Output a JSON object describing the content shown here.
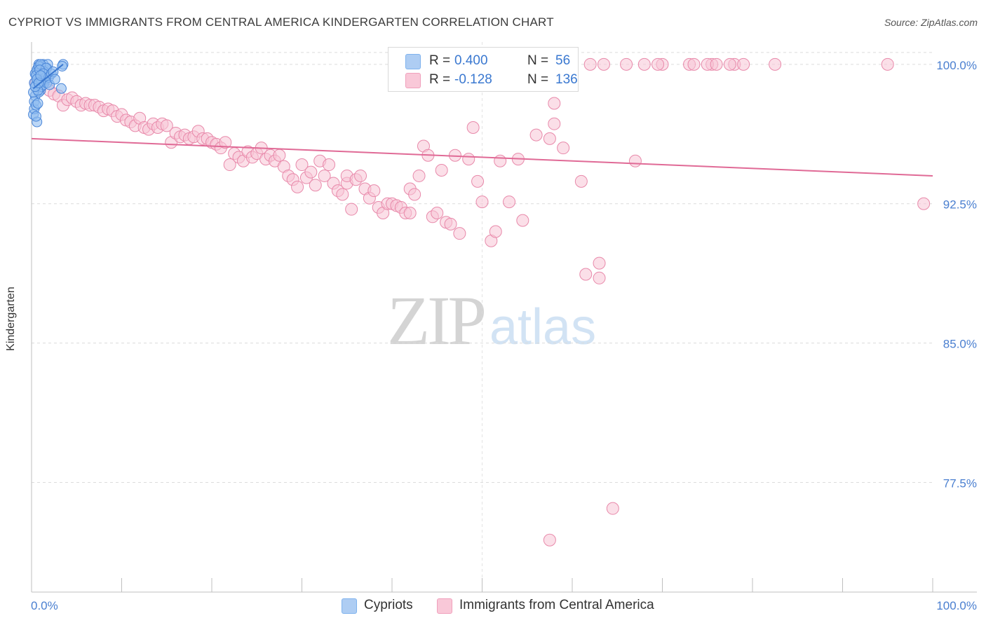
{
  "title": "CYPRIOT VS IMMIGRANTS FROM CENTRAL AMERICA KINDERGARTEN CORRELATION CHART",
  "source": "Source: ZipAtlas.com",
  "watermark": {
    "zip": "ZIP",
    "atlas": "atlas"
  },
  "stats": {
    "r_label": "R =",
    "n_label": "N =",
    "rows": [
      {
        "r": "0.400",
        "n": "56",
        "color": "#7fb3ee"
      },
      {
        "r": "-0.128",
        "n": "136",
        "color": "#f7b2c8"
      }
    ]
  },
  "legend": {
    "items": [
      {
        "label": "Cypriots",
        "color": "#aecdf3"
      },
      {
        "label": "Immigrants from Central America",
        "color": "#f9c8d8"
      }
    ]
  },
  "colors": {
    "blue_fill": "#8fbcf0",
    "blue_stroke": "#4a86d8",
    "blue_line": "#3a78d0",
    "pink_fill": "#f8c4d5",
    "pink_stroke": "#e889aa",
    "pink_line": "#e06a96",
    "tick_label": "#4a7fd0",
    "grid": "#dcdcdc",
    "axis": "#bfbfbf"
  },
  "chart_data": {
    "type": "scatter",
    "title": "CYPRIOT VS IMMIGRANTS FROM CENTRAL AMERICA KINDERGARTEN CORRELATION CHART",
    "xlabel": "",
    "ylabel": "Kindergarten",
    "xlim": [
      0,
      100
    ],
    "ylim": [
      71.6,
      101.2
    ],
    "x_tick_labels": [
      "0.0%",
      "100.0%"
    ],
    "y_ticks": [
      100.0,
      92.5,
      85.0,
      77.5
    ],
    "y_tick_labels": [
      "100.0%",
      "92.5%",
      "85.0%",
      "77.5%"
    ],
    "grid": true,
    "series": [
      {
        "name": "Cypriots",
        "r": 0.4,
        "n": 56,
        "trend": {
          "x": [
            0.2,
            3.5
          ],
          "y": [
            98.7,
            100.0
          ]
        },
        "points": [
          [
            0.2,
            97.3
          ],
          [
            0.3,
            97.6
          ],
          [
            0.4,
            98.3
          ],
          [
            0.5,
            98.9
          ],
          [
            0.6,
            99.4
          ],
          [
            0.7,
            99.8
          ],
          [
            0.8,
            100.0
          ],
          [
            0.9,
            99.2
          ],
          [
            1.0,
            98.6
          ],
          [
            1.1,
            99.9
          ],
          [
            1.2,
            99.5
          ],
          [
            1.3,
            100.0
          ],
          [
            1.4,
            99.0
          ],
          [
            1.5,
            99.7
          ],
          [
            1.6,
            99.3
          ],
          [
            1.7,
            99.8
          ],
          [
            1.8,
            100.0
          ],
          [
            0.3,
            98.0
          ],
          [
            0.5,
            97.8
          ],
          [
            0.6,
            96.9
          ],
          [
            0.7,
            97.9
          ],
          [
            0.8,
            98.5
          ],
          [
            0.9,
            99.1
          ],
          [
            1.0,
            99.6
          ],
          [
            1.1,
            98.8
          ],
          [
            1.2,
            99.4
          ],
          [
            1.3,
            98.9
          ],
          [
            1.5,
            99.2
          ],
          [
            0.4,
            99.5
          ],
          [
            0.6,
            99.7
          ],
          [
            0.8,
            99.9
          ],
          [
            1.0,
            100.0
          ],
          [
            1.2,
            99.3
          ],
          [
            1.4,
            99.6
          ],
          [
            1.6,
            99.8
          ],
          [
            0.2,
            98.5
          ],
          [
            0.3,
            99.0
          ],
          [
            0.5,
            99.4
          ],
          [
            0.7,
            98.6
          ],
          [
            0.9,
            99.7
          ],
          [
            1.1,
            99.1
          ],
          [
            1.3,
            99.5
          ],
          [
            1.7,
            99.0
          ],
          [
            1.9,
            99.3
          ],
          [
            2.0,
            98.9
          ],
          [
            2.2,
            99.5
          ],
          [
            3.5,
            100.0
          ],
          [
            3.4,
            99.9
          ],
          [
            3.3,
            98.7
          ],
          [
            2.4,
            99.6
          ],
          [
            2.6,
            99.2
          ],
          [
            0.4,
            98.8
          ],
          [
            0.6,
            99.2
          ],
          [
            0.8,
            99.0
          ],
          [
            1.0,
            99.4
          ],
          [
            0.5,
            97.2
          ]
        ]
      },
      {
        "name": "Immigrants from Central America",
        "r": -0.128,
        "n": 136,
        "trend": {
          "x": [
            0,
            100
          ],
          "y": [
            96.0,
            94.0
          ]
        },
        "points": [
          [
            0.5,
            99.0
          ],
          [
            1.0,
            98.8
          ],
          [
            1.5,
            99.2
          ],
          [
            2.0,
            98.6
          ],
          [
            2.5,
            98.4
          ],
          [
            3.0,
            98.3
          ],
          [
            3.5,
            97.8
          ],
          [
            4.0,
            98.1
          ],
          [
            4.5,
            98.2
          ],
          [
            5.0,
            98.0
          ],
          [
            5.5,
            97.8
          ],
          [
            6.0,
            97.9
          ],
          [
            6.5,
            97.8
          ],
          [
            7.0,
            97.8
          ],
          [
            7.5,
            97.7
          ],
          [
            8.0,
            97.5
          ],
          [
            8.5,
            97.6
          ],
          [
            9.0,
            97.5
          ],
          [
            9.5,
            97.2
          ],
          [
            10.0,
            97.3
          ],
          [
            10.5,
            97.0
          ],
          [
            11.0,
            96.9
          ],
          [
            11.5,
            96.7
          ],
          [
            12.0,
            97.1
          ],
          [
            12.5,
            96.6
          ],
          [
            13.0,
            96.5
          ],
          [
            13.5,
            96.8
          ],
          [
            14.0,
            96.6
          ],
          [
            14.5,
            96.8
          ],
          [
            15.0,
            96.7
          ],
          [
            15.5,
            95.8
          ],
          [
            16.0,
            96.3
          ],
          [
            16.5,
            96.1
          ],
          [
            17.0,
            96.2
          ],
          [
            17.5,
            96.0
          ],
          [
            18.0,
            96.1
          ],
          [
            18.5,
            96.4
          ],
          [
            19.0,
            96.0
          ],
          [
            19.5,
            96.0
          ],
          [
            20.0,
            95.8
          ],
          [
            20.5,
            95.7
          ],
          [
            21.0,
            95.5
          ],
          [
            21.5,
            95.8
          ],
          [
            22.0,
            94.6
          ],
          [
            22.5,
            95.2
          ],
          [
            23.0,
            95.0
          ],
          [
            23.5,
            94.8
          ],
          [
            24.0,
            95.3
          ],
          [
            24.5,
            95.0
          ],
          [
            25.0,
            95.2
          ],
          [
            25.5,
            95.5
          ],
          [
            26.0,
            94.9
          ],
          [
            26.5,
            95.1
          ],
          [
            27.0,
            94.8
          ],
          [
            27.5,
            95.1
          ],
          [
            28.0,
            94.5
          ],
          [
            28.5,
            94.0
          ],
          [
            29.0,
            93.8
          ],
          [
            29.5,
            93.4
          ],
          [
            30.0,
            94.6
          ],
          [
            30.5,
            93.9
          ],
          [
            31.0,
            94.2
          ],
          [
            31.5,
            93.5
          ],
          [
            32.0,
            94.8
          ],
          [
            32.5,
            94.0
          ],
          [
            33.0,
            94.6
          ],
          [
            33.5,
            93.6
          ],
          [
            34.0,
            93.2
          ],
          [
            34.5,
            93.0
          ],
          [
            35.0,
            93.6
          ],
          [
            35.5,
            92.2
          ],
          [
            35.0,
            94.0
          ],
          [
            36.0,
            93.8
          ],
          [
            36.5,
            94.0
          ],
          [
            37.0,
            93.3
          ],
          [
            37.5,
            92.8
          ],
          [
            38.0,
            93.2
          ],
          [
            38.5,
            92.3
          ],
          [
            39.0,
            92.0
          ],
          [
            39.5,
            92.5
          ],
          [
            40.0,
            92.5
          ],
          [
            40.5,
            92.4
          ],
          [
            41.0,
            92.3
          ],
          [
            41.5,
            92.0
          ],
          [
            42.0,
            93.3
          ],
          [
            42.5,
            93.0
          ],
          [
            43.0,
            94.0
          ],
          [
            42.0,
            92.0
          ],
          [
            43.5,
            95.6
          ],
          [
            44.0,
            95.1
          ],
          [
            44.5,
            91.8
          ],
          [
            45.0,
            92.0
          ],
          [
            45.5,
            94.3
          ],
          [
            46.0,
            91.5
          ],
          [
            46.5,
            91.4
          ],
          [
            47.0,
            95.1
          ],
          [
            47.5,
            90.9
          ],
          [
            48.5,
            94.9
          ],
          [
            49.0,
            96.6
          ],
          [
            49.5,
            93.7
          ],
          [
            50.0,
            92.6
          ],
          [
            51.0,
            90.5
          ],
          [
            51.5,
            91.0
          ],
          [
            52.0,
            94.8
          ],
          [
            53.0,
            92.6
          ],
          [
            54.0,
            94.9
          ],
          [
            54.5,
            91.6
          ],
          [
            56.0,
            96.2
          ],
          [
            58.0,
            97.9
          ],
          [
            57.5,
            96.0
          ],
          [
            58.0,
            96.8
          ],
          [
            59.0,
            95.5
          ],
          [
            61.0,
            93.7
          ],
          [
            61.5,
            88.7
          ],
          [
            63.0,
            89.3
          ],
          [
            63.0,
            88.5
          ],
          [
            64.5,
            76.1
          ],
          [
            67.0,
            94.8
          ],
          [
            57.5,
            74.4
          ],
          [
            62.0,
            100.0
          ],
          [
            63.5,
            100.0
          ],
          [
            66.0,
            100.0
          ],
          [
            68.0,
            100.0
          ],
          [
            70.0,
            100.0
          ],
          [
            73.0,
            100.0
          ],
          [
            75.5,
            100.0
          ],
          [
            75.0,
            100.0
          ],
          [
            73.5,
            100.0
          ],
          [
            78.0,
            100.0
          ],
          [
            79.0,
            100.0
          ],
          [
            82.5,
            100.0
          ],
          [
            95.0,
            100.0
          ],
          [
            77.5,
            100.0
          ],
          [
            69.5,
            100.0
          ],
          [
            76.0,
            100.0
          ],
          [
            99.0,
            92.5
          ]
        ]
      }
    ]
  }
}
